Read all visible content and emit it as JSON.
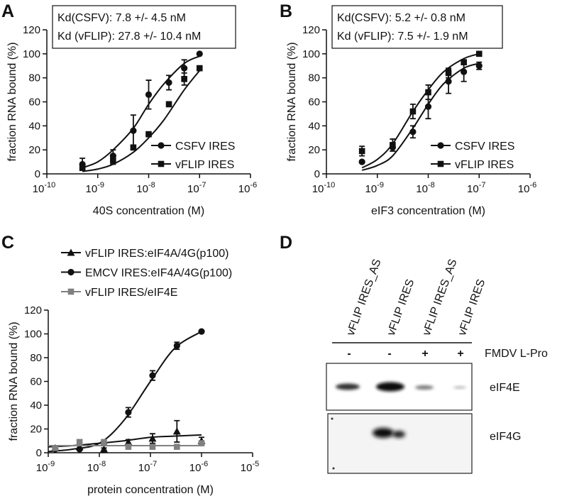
{
  "panels": {
    "labels": [
      "A",
      "B",
      "C",
      "D"
    ]
  },
  "chart_data": [
    {
      "type": "scatter",
      "xscale": "log",
      "legend": "lower right",
      "annotations": [
        "Kd(CSFV): 7.8 +/- 4.5 nM",
        "Kd (vFLIP): 27.8 +/- 10.4 nM"
      ],
      "xlabel": "40S concentration (M)",
      "ylabel": "fraction RNA bound (%)",
      "xlim": [
        1e-10,
        1e-06
      ],
      "xticks": [
        {
          "value": 1e-10,
          "label": "10",
          "exponent": "-10"
        },
        {
          "value": 1e-09,
          "label": "10",
          "exponent": "-9"
        },
        {
          "value": 1e-08,
          "label": "10",
          "exponent": "-8"
        },
        {
          "value": 1e-07,
          "label": "10",
          "exponent": "-7"
        },
        {
          "value": 1e-06,
          "label": "10",
          "exponent": "-6"
        }
      ],
      "ylim": [
        0,
        120
      ],
      "yticks": [
        0,
        20,
        40,
        60,
        80,
        100,
        120
      ],
      "x": [
        5e-10,
        2e-09,
        5e-09,
        1e-08,
        2.5e-08,
        5e-08,
        1e-07
      ],
      "series": [
        {
          "name": "CSFV IRES",
          "color": "#111111",
          "marker": "circle",
          "values": [
            8,
            15,
            36,
            66,
            76,
            88,
            100
          ],
          "errors": [
            5,
            5,
            13,
            12,
            6,
            7,
            0
          ],
          "fit": {
            "x": [
              5e-10,
              1e-09,
              2e-09,
              5e-09,
              1e-08,
              2e-08,
              5e-08,
              1e-07
            ],
            "values": [
              5,
              10,
              20,
              38,
              58,
              75,
              92,
              98
            ]
          }
        },
        {
          "name": "vFLIP IRES",
          "color": "#111111",
          "marker": "square",
          "values": [
            5,
            11,
            22,
            33,
            58,
            79,
            88
          ],
          "errors": [
            2,
            3,
            2,
            2,
            2,
            5,
            2
          ],
          "fit": {
            "x": [
              5e-10,
              1e-09,
              2e-09,
              5e-09,
              1e-08,
              2e-08,
              5e-08,
              1e-07
            ],
            "values": [
              2,
              4,
              8,
              18,
              30,
              45,
              70,
              86
            ]
          }
        }
      ]
    },
    {
      "type": "scatter",
      "xscale": "log",
      "legend": "lower right",
      "annotations": [
        "Kd(CSFV): 5.2 +/- 0.8 nM",
        "Kd (vFLIP): 7.5 +/- 1.9 nM"
      ],
      "xlabel": "eIF3 concentration (M)",
      "ylabel": "fraction RNA bound (%)",
      "xlim": [
        1e-10,
        1e-06
      ],
      "xticks": [
        {
          "value": 1e-10,
          "label": "10",
          "exponent": "-10"
        },
        {
          "value": 1e-09,
          "label": "10",
          "exponent": "-9"
        },
        {
          "value": 1e-08,
          "label": "10",
          "exponent": "-8"
        },
        {
          "value": 1e-07,
          "label": "10",
          "exponent": "-7"
        },
        {
          "value": 1e-06,
          "label": "10",
          "exponent": "-6"
        }
      ],
      "ylim": [
        0,
        120
      ],
      "yticks": [
        0,
        20,
        40,
        60,
        80,
        100,
        120
      ],
      "x": [
        5e-10,
        2e-09,
        5e-09,
        1e-08,
        2.5e-08,
        5e-08,
        1e-07
      ],
      "series": [
        {
          "name": "CSFV IRES",
          "color": "#111111",
          "marker": "circle",
          "values": [
            10,
            22,
            35,
            56,
            77,
            85,
            90
          ],
          "errors": [
            1,
            3,
            5,
            10,
            10,
            8,
            3
          ],
          "fit": {
            "x": [
              5e-10,
              1e-09,
              2e-09,
              5e-09,
              1e-08,
              2e-08,
              5e-08,
              1e-07
            ],
            "values": [
              3,
              7,
              15,
              38,
              58,
              75,
              88,
              92
            ]
          }
        },
        {
          "name": "vFLIP IRES",
          "color": "#111111",
          "marker": "square",
          "values": [
            19,
            24,
            52,
            68,
            84,
            93,
            100
          ],
          "errors": [
            4,
            5,
            6,
            6,
            4,
            2,
            1
          ],
          "fit": {
            "x": [
              5e-10,
              1e-09,
              2e-09,
              5e-09,
              1e-08,
              2e-08,
              5e-08,
              1e-07
            ],
            "values": [
              5,
              12,
              25,
              52,
              70,
              85,
              96,
              100
            ]
          }
        }
      ]
    },
    {
      "type": "scatter",
      "xscale": "log",
      "legend": "above",
      "xlabel": "protein concentration (M)",
      "ylabel": "fraction RNA bound (%)",
      "xlim": [
        1e-09,
        1e-05
      ],
      "xticks": [
        {
          "value": 1e-09,
          "label": "10",
          "exponent": "-9"
        },
        {
          "value": 1e-08,
          "label": "10",
          "exponent": "-8"
        },
        {
          "value": 1e-07,
          "label": "10",
          "exponent": "-7"
        },
        {
          "value": 1e-06,
          "label": "10",
          "exponent": "-6"
        },
        {
          "value": 1e-05,
          "label": "10",
          "exponent": "-5"
        }
      ],
      "ylim": [
        0,
        120
      ],
      "yticks": [
        0,
        20,
        40,
        60,
        80,
        100,
        120
      ],
      "x": [
        1.37e-09,
        4.1e-09,
        1.23e-08,
        3.7e-08,
        1.1e-07,
        3.3e-07,
        1e-06
      ],
      "series": [
        {
          "name": "vFLIP IRES:eIF4A/4G(p100)",
          "color": "#111111",
          "marker": "triangle",
          "values": [
            4,
            5,
            3,
            9,
            12,
            18,
            10
          ],
          "errors": [
            2,
            2,
            1,
            2,
            4,
            9,
            3
          ],
          "fit": {
            "x": [
              1e-09,
              3e-09,
              1e-08,
              3e-08,
              1e-07,
              3e-07,
              1e-06
            ],
            "values": [
              5,
              6,
              8,
              10,
              13,
              14,
              15
            ]
          }
        },
        {
          "name": "EMCV IRES:eIF4A/4G(p100)",
          "color": "#111111",
          "marker": "circle",
          "values": [
            3,
            3,
            8,
            34,
            65,
            90,
            102
          ],
          "errors": [
            1,
            1,
            2,
            4,
            4,
            3,
            1
          ],
          "fit": {
            "x": [
              1e-09,
              3e-09,
              1e-08,
              3e-08,
              1e-07,
              3e-07,
              1e-06
            ],
            "values": [
              1,
              3,
              8,
              27,
              60,
              88,
              102
            ]
          }
        },
        {
          "name": "vFLIP IRES/eIF4E",
          "color": "#808080",
          "marker": "square",
          "values": [
            4,
            9,
            9,
            5,
            5,
            5,
            8
          ],
          "errors": [
            1,
            2,
            2,
            1,
            1,
            1,
            2
          ],
          "fit": {
            "x": [
              1e-09,
              3e-09,
              1e-08,
              3e-08,
              1e-07,
              3e-07,
              1e-06
            ],
            "values": [
              6,
              6,
              6,
              6,
              6,
              6,
              6
            ]
          }
        }
      ]
    }
  ],
  "blot": {
    "lanes": [
      "vFLIP IRES_AS",
      "vFLIP IRES",
      "vFLIP IRES_AS",
      "vFLIP IRES"
    ],
    "treatment": [
      "-",
      "-",
      "+",
      "+"
    ],
    "treatment_label": "FMDV L-Pro",
    "proteins": [
      "eIF4E",
      "eIF4G"
    ]
  }
}
